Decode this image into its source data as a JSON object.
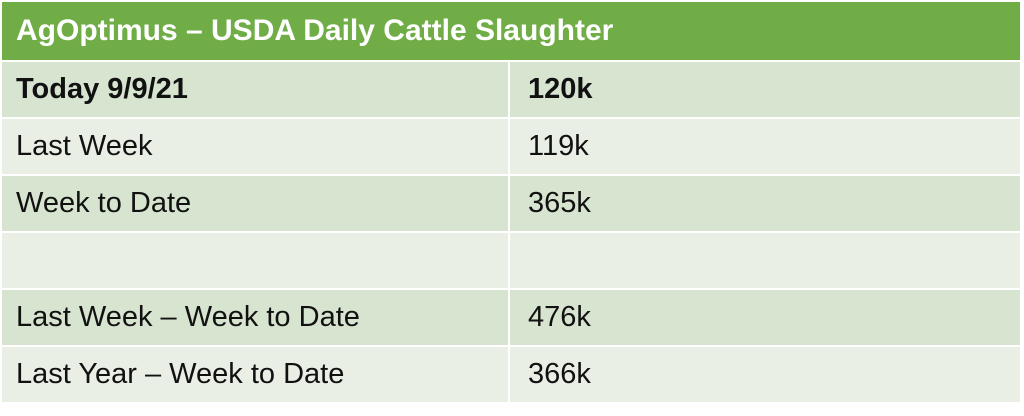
{
  "title": "AgOptimus – USDA Daily Cattle Slaughter",
  "rows": [
    {
      "label": "Today 9/9/21",
      "value": "120k"
    },
    {
      "label": "Last Week",
      "value": "119k"
    },
    {
      "label": "Week to Date",
      "value": "365k"
    },
    {
      "label": "",
      "value": ""
    },
    {
      "label": "Last Week – Week to Date",
      "value": "476k"
    },
    {
      "label": "Last Year – Week to Date",
      "value": "366k"
    }
  ],
  "colors": {
    "header_bg": "#70ad47",
    "row_dark": "#d7e4d0",
    "row_light": "#e9efe5"
  }
}
